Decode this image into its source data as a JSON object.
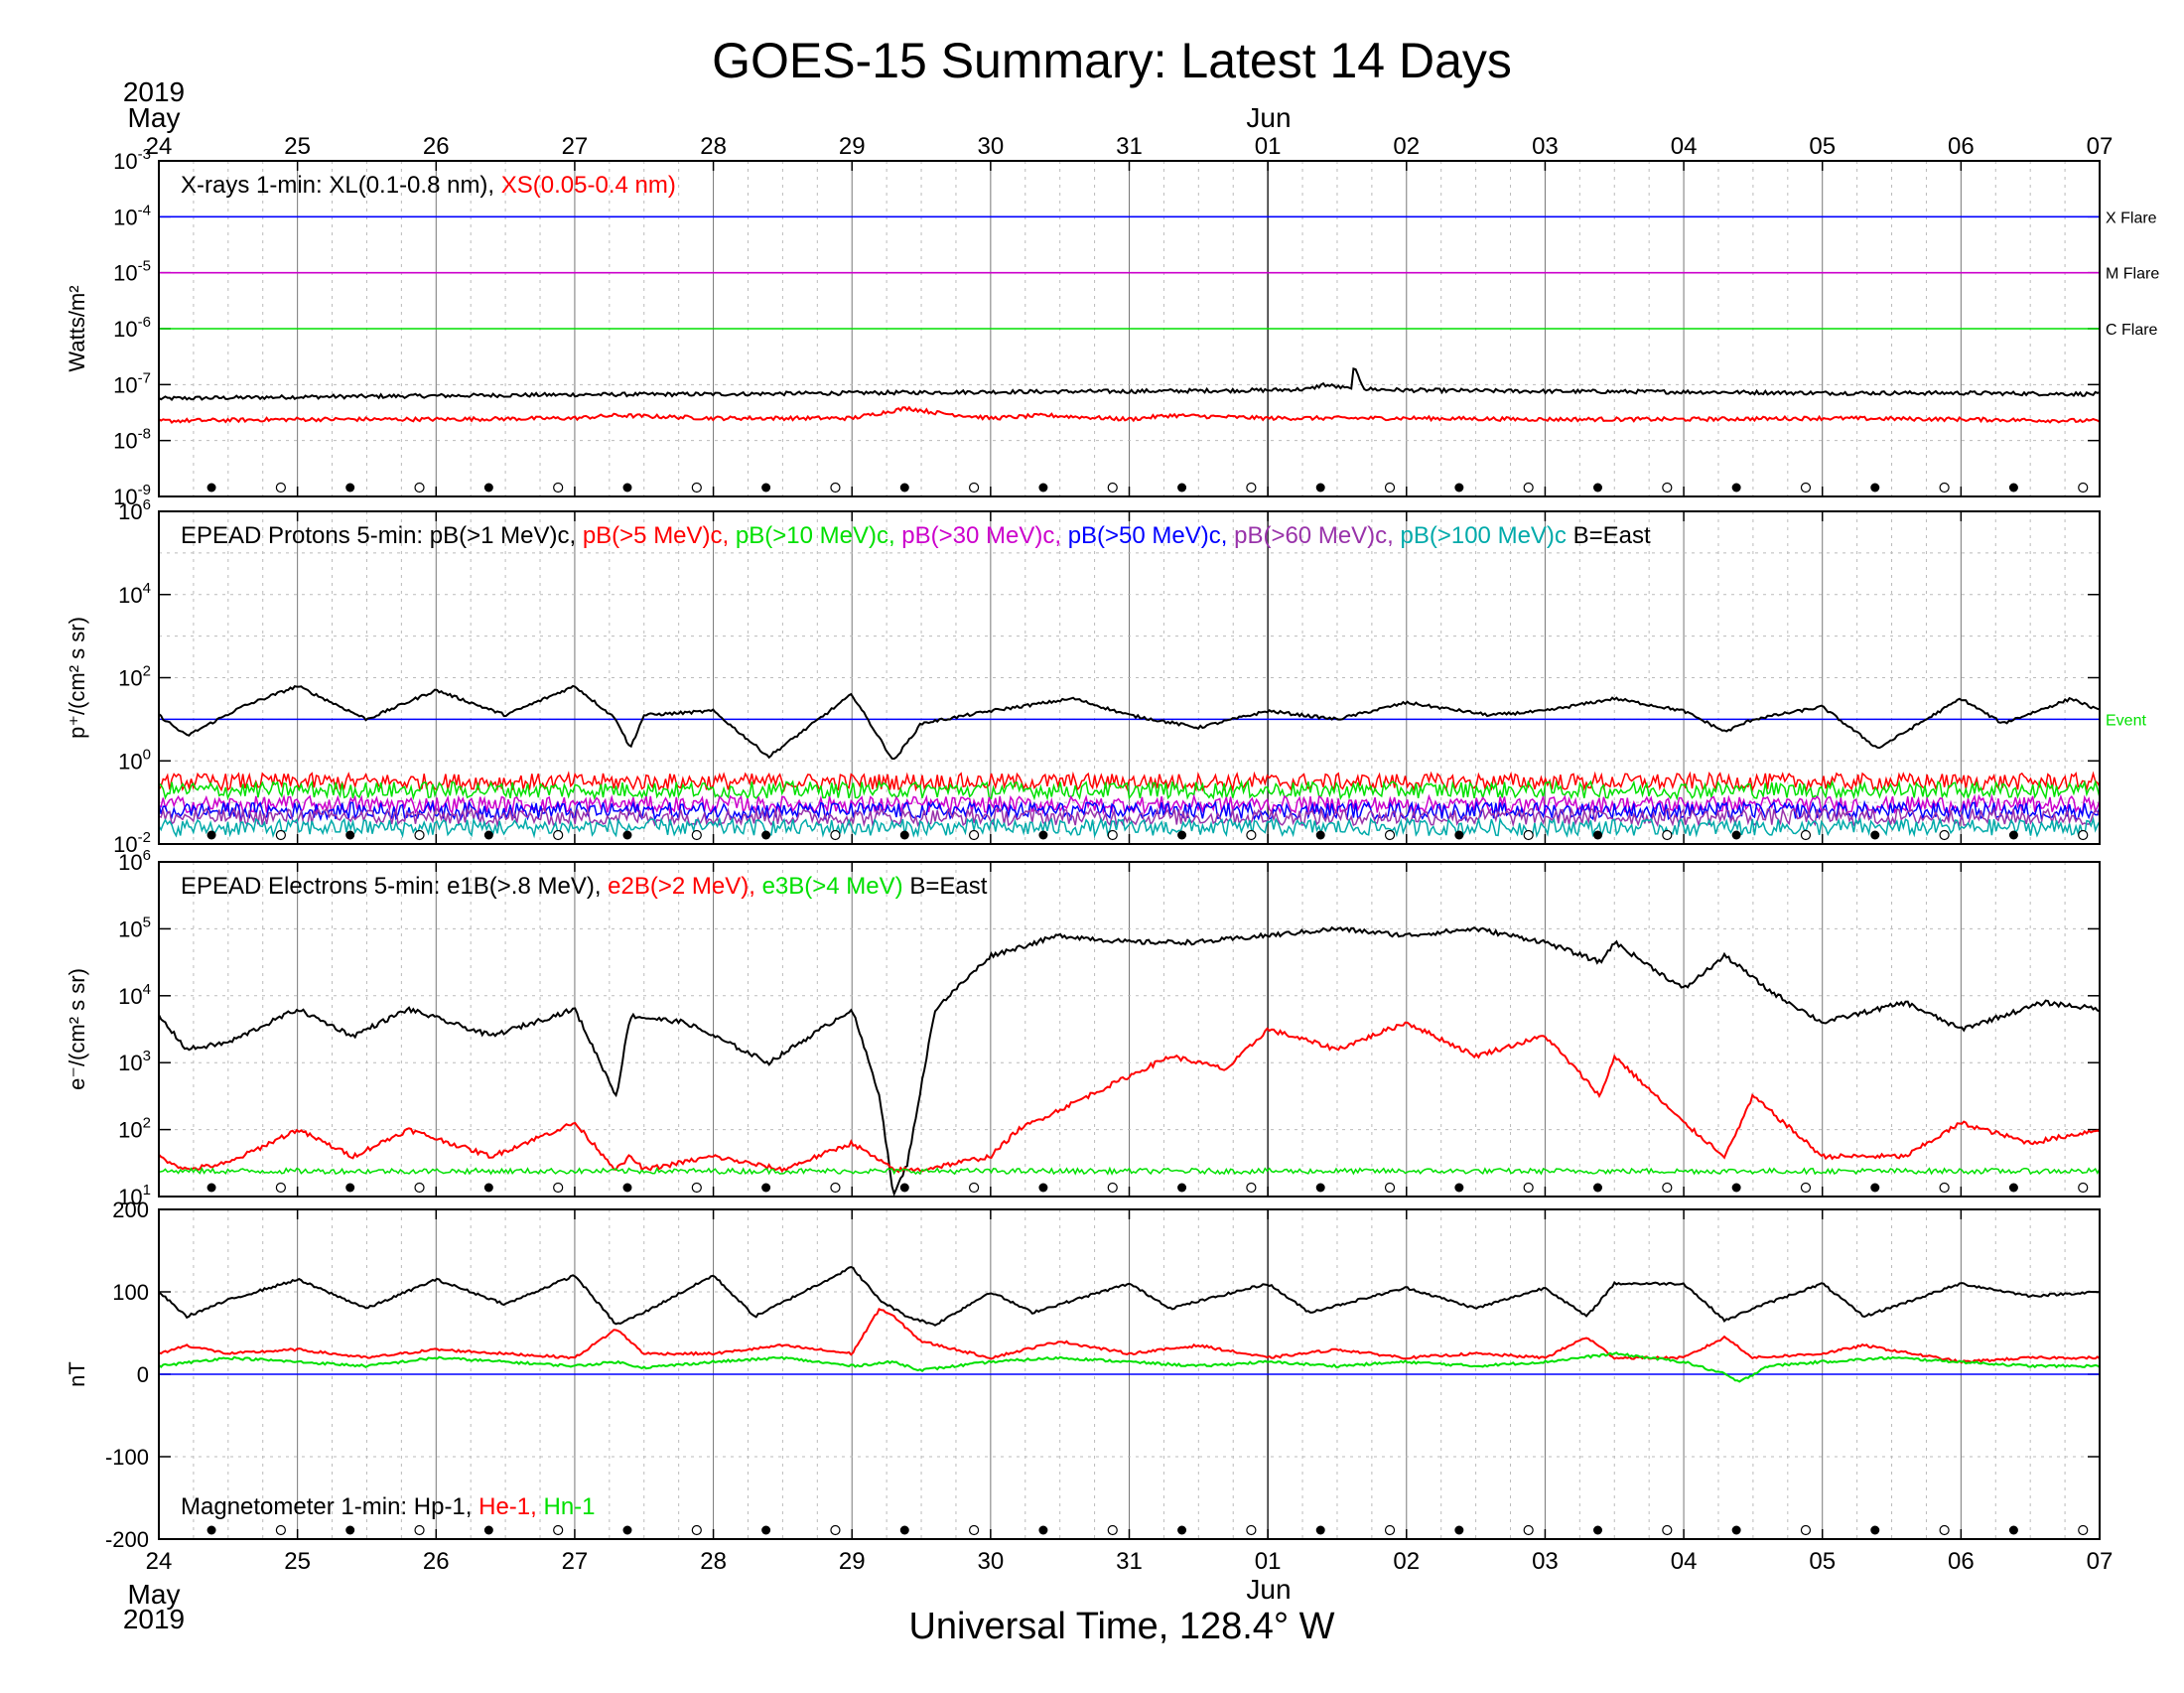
{
  "title": "GOES-15 Summary: Latest 14 Days",
  "xlabel": "Universal Time, 128.4° W",
  "top_axis": {
    "year": "2019",
    "month_start": "May",
    "month_second": "Jun"
  },
  "bottom_axis": {
    "year": "2019",
    "month_start": "May",
    "month_second": "Jun"
  },
  "day_labels": [
    "24",
    "25",
    "26",
    "27",
    "28",
    "29",
    "30",
    "31",
    "01",
    "02",
    "03",
    "04",
    "05",
    "06",
    "07"
  ],
  "colors": {
    "black": "#000000",
    "red": "#ff0000",
    "green": "#00e000",
    "magenta": "#cc00cc",
    "blue": "#0000ff",
    "purple": "#9933aa",
    "teal": "#00aaaa",
    "grid": "#999999"
  },
  "chart_data": [
    {
      "type": "line",
      "panel": "xrays",
      "ylabel": "Watts/m²",
      "yscale": "log",
      "ylim_exp": [
        -9,
        -3
      ],
      "ytick_exponents": [
        -9,
        -8,
        -7,
        -6,
        -5,
        -4,
        -3
      ],
      "legend": {
        "prefix": "X-rays  1-min: XL(0.1-0.8 nm),  ",
        "red": "XS(0.05-0.4 nm)"
      },
      "thresholds": [
        {
          "label": "X Flare",
          "exp": -4,
          "color": "#0000ff"
        },
        {
          "label": "M Flare",
          "exp": -5,
          "color": "#cc00cc"
        },
        {
          "label": "C Flare",
          "exp": -6,
          "color": "#00e000"
        }
      ],
      "series": [
        {
          "name": "XL(0.1-0.8 nm)",
          "color": "#000000",
          "x": [
            0,
            1,
            2,
            3,
            4,
            5,
            6,
            7,
            8,
            8.3,
            8.4,
            8.6,
            8.62,
            8.7,
            9,
            10,
            11,
            12,
            13,
            14
          ],
          "log10": [
            -7.25,
            -7.22,
            -7.2,
            -7.18,
            -7.17,
            -7.15,
            -7.13,
            -7.12,
            -7.1,
            -7.08,
            -7.0,
            -7.08,
            -6.7,
            -7.08,
            -7.1,
            -7.12,
            -7.13,
            -7.15,
            -7.15,
            -7.17
          ]
        },
        {
          "name": "XS(0.05-0.4 nm)",
          "color": "#ff0000",
          "x": [
            0,
            1,
            2,
            3,
            3.3,
            4,
            5,
            5.4,
            5.6,
            6,
            6.4,
            7,
            7.3,
            8,
            9,
            10,
            11,
            12,
            13,
            14
          ],
          "log10": [
            -7.65,
            -7.62,
            -7.62,
            -7.6,
            -7.55,
            -7.6,
            -7.6,
            -7.42,
            -7.5,
            -7.6,
            -7.55,
            -7.62,
            -7.55,
            -7.6,
            -7.6,
            -7.62,
            -7.62,
            -7.6,
            -7.62,
            -7.65
          ]
        }
      ]
    },
    {
      "type": "line",
      "panel": "protons",
      "ylabel": "p⁺/(cm² s sr)",
      "yscale": "log",
      "ylim_exp": [
        -2,
        6
      ],
      "ytick_exponents": [
        -2,
        0,
        2,
        4,
        6
      ],
      "ytick_labels": [
        "10",
        "10",
        "10",
        "10",
        "10"
      ],
      "legend": {
        "prefix": "EPEAD Protons 5-min: pB(>1 MeV)c,  ",
        "items": [
          {
            "text": "pB(>5 MeV)c,",
            "color": "#ff0000"
          },
          {
            "text": "pB(>10 MeV)c,",
            "color": "#00e000"
          },
          {
            "text": "pB(>30 MeV)c,",
            "color": "#cc00cc"
          },
          {
            "text": "pB(>50 MeV)c,",
            "color": "#0000ff"
          },
          {
            "text": "pB(>60 MeV)c,",
            "color": "#9933aa"
          },
          {
            "text": "pB(>100 MeV)c",
            "color": "#00aaaa"
          }
        ],
        "suffix": "B=East"
      },
      "thresholds": [
        {
          "label": "Event",
          "exp": 1,
          "color": "#0000ff",
          "label_color": "#00e000"
        }
      ],
      "series": [
        {
          "name": "pB(>1 MeV)c",
          "color": "#000000",
          "x": [
            0,
            0.2,
            0.6,
            1,
            1.5,
            2,
            2.5,
            3,
            3.3,
            3.4,
            3.5,
            4,
            4.4,
            5,
            5.3,
            5.5,
            6,
            6.6,
            7,
            7.5,
            8,
            8.5,
            9,
            9.6,
            10,
            10.5,
            11,
            11.3,
            11.5,
            12,
            12.4,
            13,
            13.3,
            13.8,
            14
          ],
          "log10": [
            1.1,
            0.6,
            1.3,
            1.8,
            1.0,
            1.7,
            1.1,
            1.8,
            1.0,
            0.3,
            1.1,
            1.2,
            0.1,
            1.6,
            0.0,
            0.9,
            1.2,
            1.5,
            1.1,
            0.8,
            1.2,
            1.0,
            1.4,
            1.1,
            1.2,
            1.5,
            1.2,
            0.7,
            1.0,
            1.3,
            0.3,
            1.5,
            0.9,
            1.5,
            1.2
          ]
        },
        {
          "name": "pB(>5 MeV)c",
          "color": "#ff0000",
          "base": -0.5,
          "noise": 0.2
        },
        {
          "name": "pB(>10 MeV)c",
          "color": "#00e000",
          "base": -0.7,
          "noise": 0.2
        },
        {
          "name": "pB(>30 MeV)c",
          "color": "#cc00cc",
          "base": -1.05,
          "noise": 0.2
        },
        {
          "name": "pB(>50 MeV)c",
          "color": "#0000ff",
          "base": -1.2,
          "noise": 0.2
        },
        {
          "name": "pB(>60 MeV)c",
          "color": "#9933aa",
          "base": -1.35,
          "noise": 0.2
        },
        {
          "name": "pB(>100 MeV)c",
          "color": "#00aaaa",
          "base": -1.6,
          "noise": 0.2
        }
      ]
    },
    {
      "type": "line",
      "panel": "electrons",
      "ylabel": "e⁻/(cm² s sr)",
      "yscale": "log",
      "ylim_exp": [
        1,
        6
      ],
      "ytick_exponents": [
        1,
        2,
        3,
        4,
        5,
        6
      ],
      "legend": {
        "prefix": "EPEAD Electrons 5-min: e1B(>.8 MeV),  ",
        "items": [
          {
            "text": "e2B(>2 MeV),",
            "color": "#ff0000"
          },
          {
            "text": "e3B(>4 MeV)",
            "color": "#00e000"
          }
        ],
        "suffix": "B=East"
      },
      "series": [
        {
          "name": "e1B(>.8 MeV)",
          "color": "#000000",
          "x": [
            0,
            0.2,
            0.5,
            1,
            1.4,
            1.8,
            2.4,
            3.0,
            3.3,
            3.4,
            3.8,
            4.4,
            5,
            5.2,
            5.3,
            5.4,
            5.6,
            6,
            6.5,
            7,
            7.5,
            8,
            8.5,
            9,
            9.5,
            10,
            10.4,
            10.5,
            11,
            11.3,
            11.6,
            12,
            12.6,
            13,
            13.6,
            14
          ],
          "log10": [
            3.7,
            3.2,
            3.3,
            3.8,
            3.4,
            3.8,
            3.4,
            3.8,
            2.5,
            3.7,
            3.6,
            3.0,
            3.8,
            2.5,
            1.0,
            1.5,
            3.8,
            4.6,
            4.9,
            4.8,
            4.8,
            4.9,
            5.0,
            4.9,
            5.0,
            4.8,
            4.5,
            4.8,
            4.1,
            4.6,
            4.1,
            3.6,
            3.9,
            3.5,
            3.9,
            3.8
          ]
        },
        {
          "name": "e2B(>2 MeV)",
          "color": "#ff0000",
          "x": [
            0,
            0.2,
            0.5,
            1,
            1.4,
            1.8,
            2.4,
            3.0,
            3.3,
            3.4,
            3.5,
            4,
            4.5,
            5,
            5.3,
            5.5,
            6,
            6.2,
            6.5,
            7,
            7.3,
            7.7,
            8,
            8.5,
            9,
            9.5,
            10,
            10.4,
            10.5,
            11,
            11.3,
            11.5,
            12,
            12.3,
            12.6,
            13,
            13.5,
            14
          ],
          "log10": [
            1.6,
            1.4,
            1.5,
            2.0,
            1.6,
            2.0,
            1.6,
            2.1,
            1.4,
            1.6,
            1.4,
            1.6,
            1.4,
            1.8,
            1.4,
            1.4,
            1.6,
            2.0,
            2.3,
            2.8,
            3.1,
            2.9,
            3.5,
            3.2,
            3.6,
            3.1,
            3.4,
            2.5,
            3.1,
            2.1,
            1.6,
            2.5,
            1.6,
            1.6,
            1.6,
            2.1,
            1.8,
            2.0
          ]
        },
        {
          "name": "e3B(>4 MeV)",
          "color": "#00e000",
          "base": 1.38,
          "noise": 0.04
        }
      ]
    },
    {
      "type": "line",
      "panel": "magnetometer",
      "ylabel": "nT",
      "yscale": "linear",
      "ylim": [
        -200,
        200
      ],
      "yticks": [
        -200,
        -100,
        0,
        100,
        200
      ],
      "legend": {
        "prefix": "Magnetometer  1-min: Hp-1,  ",
        "items": [
          {
            "text": "He-1,",
            "color": "#ff0000"
          },
          {
            "text": "Hn-1",
            "color": "#00e000"
          }
        ]
      },
      "thresholds": [
        {
          "value": 0,
          "color": "#0000ff"
        }
      ],
      "series": [
        {
          "name": "Hp-1",
          "color": "#000000",
          "x": [
            0,
            0.2,
            0.5,
            1,
            1.5,
            2,
            2.5,
            3,
            3.3,
            3.5,
            4,
            4.3,
            5,
            5.2,
            5.4,
            5.6,
            6,
            6.3,
            7,
            7.3,
            8,
            8.3,
            9,
            9.5,
            10,
            10.3,
            10.5,
            11,
            11.3,
            11.5,
            12,
            12.3,
            13,
            13.5,
            14
          ],
          "y": [
            100,
            70,
            90,
            115,
            80,
            115,
            85,
            120,
            60,
            75,
            120,
            70,
            130,
            90,
            70,
            60,
            100,
            75,
            110,
            80,
            110,
            75,
            105,
            80,
            105,
            70,
            110,
            110,
            65,
            80,
            110,
            70,
            110,
            95,
            100
          ]
        },
        {
          "name": "He-1",
          "color": "#ff0000",
          "x": [
            0,
            0.2,
            0.5,
            1,
            1.5,
            2,
            2.5,
            3,
            3.3,
            3.5,
            4,
            4.5,
            5,
            5.2,
            5.3,
            5.5,
            6,
            6.5,
            7,
            7.5,
            8,
            8.5,
            9,
            9.5,
            10,
            10.3,
            10.5,
            11,
            11.3,
            11.5,
            12,
            12.3,
            13,
            13.5,
            14
          ],
          "y": [
            25,
            35,
            25,
            30,
            20,
            30,
            25,
            20,
            55,
            25,
            25,
            35,
            25,
            80,
            70,
            40,
            20,
            40,
            25,
            35,
            20,
            30,
            20,
            25,
            20,
            45,
            20,
            20,
            45,
            20,
            25,
            35,
            15,
            20,
            20
          ]
        },
        {
          "name": "Hn-1",
          "color": "#00e000",
          "x": [
            0,
            0.5,
            1,
            1.5,
            2,
            2.5,
            3,
            3.3,
            3.5,
            4,
            4.5,
            5,
            5.3,
            5.5,
            6,
            6.5,
            7,
            7.5,
            8,
            8.5,
            9,
            9.5,
            10,
            10.5,
            11,
            11.3,
            11.4,
            11.6,
            12,
            12.5,
            13,
            13.5,
            14
          ],
          "y": [
            10,
            20,
            15,
            10,
            20,
            15,
            10,
            15,
            8,
            15,
            20,
            10,
            15,
            5,
            15,
            20,
            15,
            10,
            15,
            10,
            15,
            10,
            15,
            25,
            15,
            0,
            -10,
            10,
            15,
            20,
            15,
            10,
            10
          ]
        }
      ]
    }
  ]
}
